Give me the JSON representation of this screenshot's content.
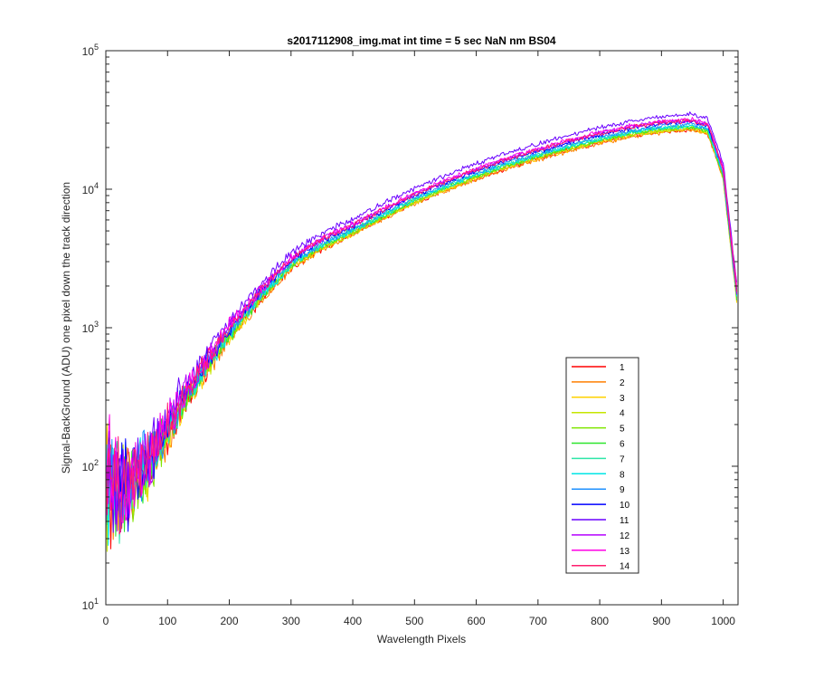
{
  "chart_data": {
    "type": "line",
    "title": "s2017112908_img.mat int time = 5 sec  NaN nm BS04",
    "xlabel": "Wavelength Pixels",
    "ylabel": "Signal-BackGround (ADU) one pixel down the track direction",
    "xlim": [
      0,
      1024
    ],
    "ylim": [
      10,
      100000
    ],
    "yscale": "log",
    "grid": false,
    "legend_position": "bottom-right",
    "x_ticks": [
      0,
      100,
      200,
      300,
      400,
      500,
      600,
      700,
      800,
      900,
      1000
    ],
    "x_tick_labels": [
      "0",
      "100",
      "200",
      "300",
      "400",
      "500",
      "600",
      "700",
      "800",
      "900",
      "1000"
    ],
    "y_ticks": [
      10,
      100,
      1000,
      10000,
      100000
    ],
    "y_tick_base": "10",
    "y_tick_exponents": [
      "1",
      "2",
      "3",
      "4",
      "5"
    ],
    "x": [
      0,
      25,
      50,
      75,
      100,
      150,
      200,
      250,
      300,
      350,
      400,
      450,
      500,
      550,
      600,
      650,
      700,
      750,
      800,
      850,
      900,
      950,
      975,
      1000,
      1024
    ],
    "base_profile": [
      70,
      60,
      85,
      110,
      190,
      450,
      920,
      1700,
      2900,
      4000,
      5100,
      6600,
      8500,
      10500,
      12800,
      15300,
      17800,
      20500,
      23300,
      26000,
      28000,
      29000,
      27000,
      13000,
      1500
    ],
    "series": [
      {
        "name": "1",
        "color": "#ff0000",
        "scale": 0.93
      },
      {
        "name": "2",
        "color": "#ff7f00",
        "scale": 0.92
      },
      {
        "name": "3",
        "color": "#ffd200",
        "scale": 0.94
      },
      {
        "name": "4",
        "color": "#c6e600",
        "scale": 0.95
      },
      {
        "name": "5",
        "color": "#7fe600",
        "scale": 0.96
      },
      {
        "name": "6",
        "color": "#2ee62e",
        "scale": 0.98
      },
      {
        "name": "7",
        "color": "#2ee6a8",
        "scale": 1.0
      },
      {
        "name": "8",
        "color": "#00e6e6",
        "scale": 0.99
      },
      {
        "name": "9",
        "color": "#1e90ff",
        "scale": 1.02
      },
      {
        "name": "10",
        "color": "#0000ff",
        "scale": 1.06
      },
      {
        "name": "11",
        "color": "#6a00ff",
        "scale": 1.2
      },
      {
        "name": "12",
        "color": "#b400ff",
        "scale": 1.09
      },
      {
        "name": "13",
        "color": "#ff00e6",
        "scale": 1.1
      },
      {
        "name": "14",
        "color": "#ff1e6e",
        "scale": 1.08
      }
    ]
  }
}
